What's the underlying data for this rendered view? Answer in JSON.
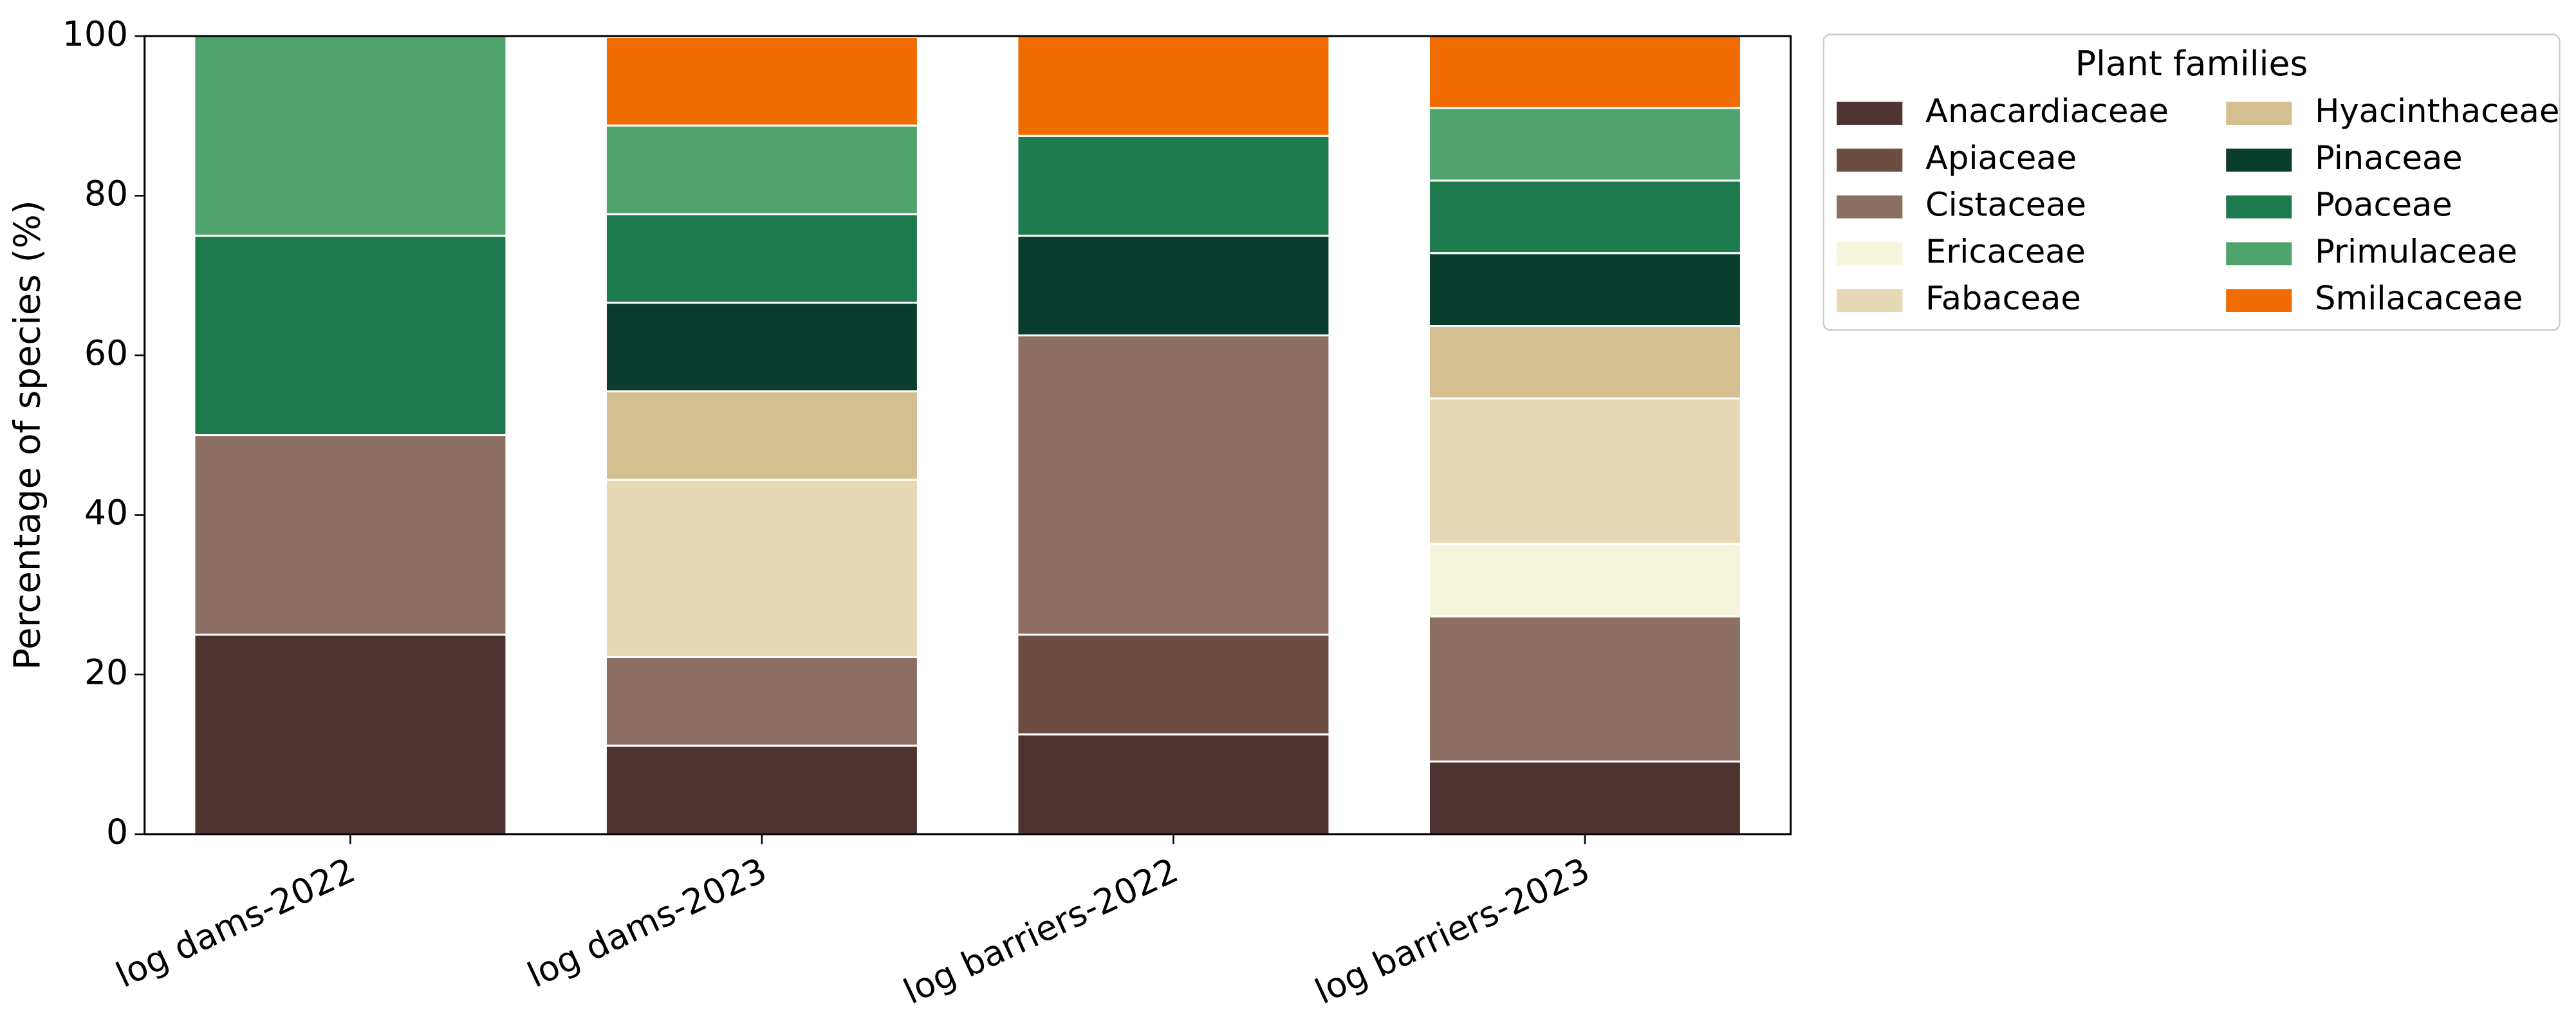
{
  "chart_data": {
    "type": "stacked_bar",
    "ylabel": "Percentage of species (%)",
    "categories": [
      "log dams-2022",
      "log dams-2023",
      "log barriers-2022",
      "log barriers-2023"
    ],
    "ylim": [
      0,
      100
    ],
    "yticks": [
      0,
      20,
      40,
      60,
      80,
      100
    ],
    "legend_title": "Plant families",
    "legend_position": "outside right",
    "series": [
      {
        "name": "Anacardiaceae",
        "color": "#4e342e",
        "values": [
          25,
          11.1,
          12.5,
          9.1
        ]
      },
      {
        "name": "Apiaceae",
        "color": "#6d4c41",
        "values": [
          0,
          0,
          12.5,
          0
        ]
      },
      {
        "name": "Cistaceae",
        "color": "#8d6e63",
        "values": [
          25,
          11.1,
          37.5,
          18.2
        ]
      },
      {
        "name": "Ericaceae",
        "color": "#f5f5dc",
        "values": [
          0,
          0,
          0,
          9.1
        ]
      },
      {
        "name": "Fabaceae",
        "color": "#e6d8b4",
        "values": [
          0,
          22.2,
          0,
          18.2
        ]
      },
      {
        "name": "Hyacinthaceae",
        "color": "#d4bf91",
        "values": [
          0,
          11.1,
          0,
          9.1
        ]
      },
      {
        "name": "Pinaceae",
        "color": "#0b3d2e",
        "values": [
          0,
          11.1,
          12.5,
          9.1
        ]
      },
      {
        "name": "Poaceae",
        "color": "#1e7b4e",
        "values": [
          25,
          11.1,
          12.5,
          9.1
        ]
      },
      {
        "name": "Primulaceae",
        "color": "#4fa36c",
        "values": [
          25,
          11.1,
          0,
          9.1
        ]
      },
      {
        "name": "Smilacaceae",
        "color": "#f06c00",
        "values": [
          0,
          11.1,
          12.5,
          9.1
        ]
      }
    ]
  }
}
